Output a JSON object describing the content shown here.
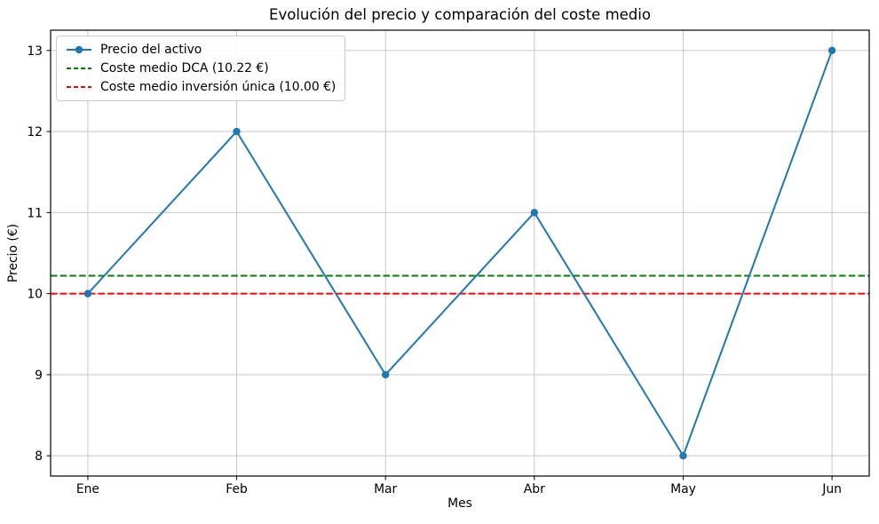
{
  "chart_data": {
    "type": "line",
    "title": "Evolución del precio y comparación del coste medio",
    "xlabel": "Mes",
    "ylabel": "Precio (€)",
    "categories": [
      "Ene",
      "Feb",
      "Mar",
      "Abr",
      "May",
      "Jun"
    ],
    "series": [
      {
        "name": "Precio del activo",
        "values": [
          10,
          12,
          9,
          11,
          8,
          13
        ],
        "color": "#1f77b4",
        "linestyle": "solid",
        "marker": "circle"
      }
    ],
    "hlines": [
      {
        "name": "Coste medio DCA (10.22 €)",
        "value": 10.22,
        "color": "#008000",
        "linestyle": "dashed"
      },
      {
        "name": "Coste medio inversión única (10.00 €)",
        "value": 10.0,
        "color": "#ff0000",
        "linestyle": "dashed"
      }
    ],
    "yticks": [
      8,
      9,
      10,
      11,
      12,
      13
    ],
    "ylim": [
      7.75,
      13.25
    ],
    "xlim": [
      -0.25,
      5.25
    ],
    "grid": true,
    "grid_color": "#c8c8c8",
    "frame_color": "#000000",
    "legend_position": "upper left"
  }
}
